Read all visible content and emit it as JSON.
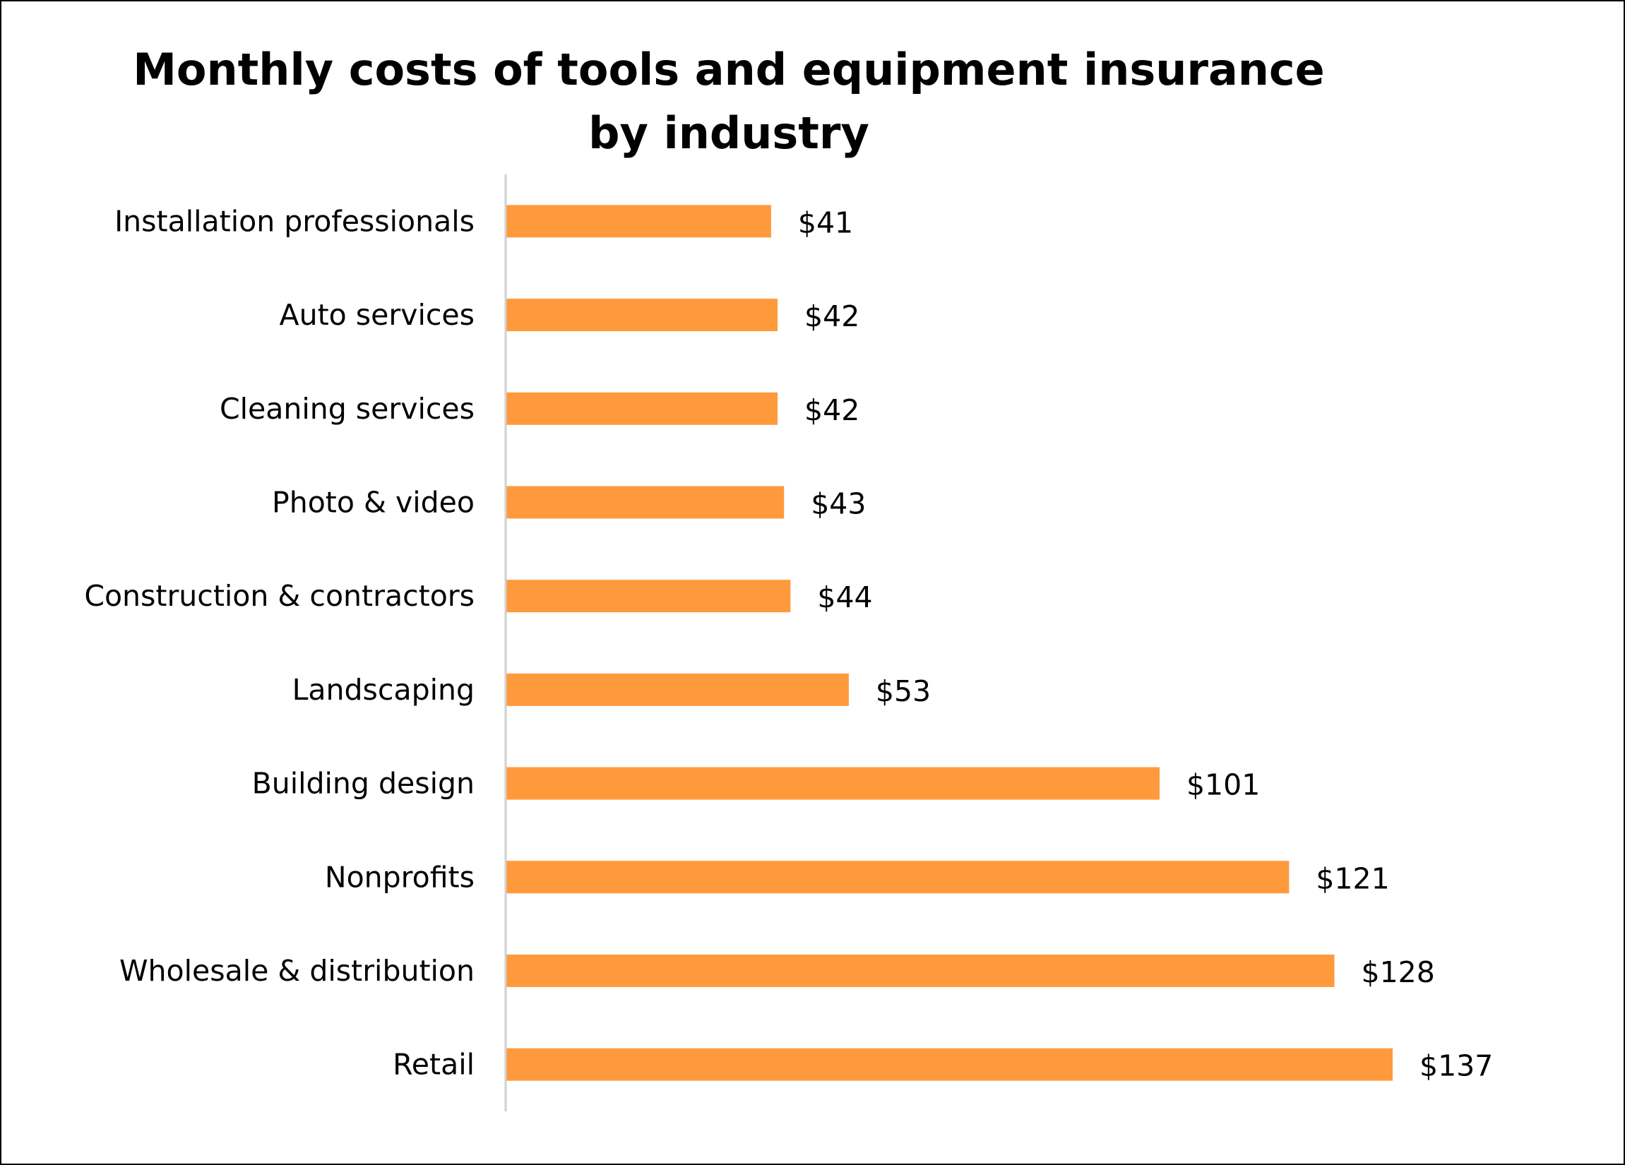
{
  "chart_data": {
    "type": "bar",
    "orientation": "horizontal",
    "title": "Monthly costs of tools and equipment insurance by industry",
    "xlabel": "",
    "ylabel": "",
    "categories": [
      "Installation professionals",
      "Auto services",
      "Cleaning services",
      "Photo & video",
      "Construction & contractors",
      "Landscaping",
      "Building design",
      "Nonprofits",
      "Wholesale & distribution",
      "Retail"
    ],
    "values": [
      41,
      42,
      42,
      43,
      44,
      53,
      101,
      121,
      128,
      137
    ],
    "data_labels": [
      "$41",
      "$42",
      "$42",
      "$43",
      "$44",
      "$53",
      "$101",
      "$121",
      "$128",
      "$137"
    ],
    "xlim": [
      0,
      137
    ],
    "grid": false,
    "legend": "none",
    "bar_color": "#FF9A3C",
    "axis_color": "#D0D0D0"
  }
}
